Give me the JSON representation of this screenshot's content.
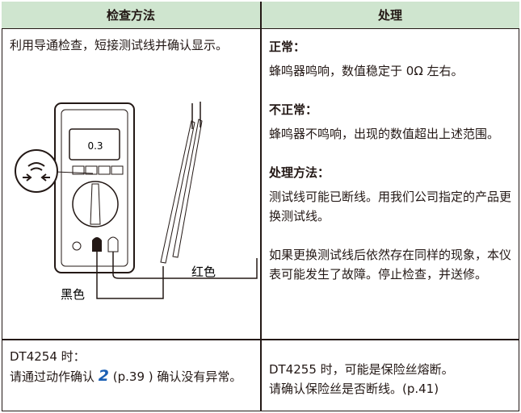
{
  "header": {
    "col1": "检查方法",
    "col2": "处理"
  },
  "rows": [
    {
      "method": {
        "text": "利用导通检查，短接测试线并确认显示。",
        "figure": {
          "display": "0.3",
          "black_label": "黑色",
          "red_label": "红色"
        }
      },
      "action": {
        "sections": [
          {
            "title": "正常：",
            "text": "蜂鸣器鸣响，数值稳定于 0Ω 左右。"
          },
          {
            "title": "不正常：",
            "text": "蜂鸣器不鸣响，出现的数值超出上述范围。"
          },
          {
            "title": "处理方法：",
            "text": "测试线可能已断线。用我们公司指定的产品更换测试线。"
          },
          {
            "text": "如果更换测试线后依然存在同样的现象，本仪表可能发生了故障。停止检查，并送修。"
          }
        ]
      }
    },
    {
      "method": {
        "model": "DT4254 时：",
        "prefix": "请通过动作确认 ",
        "step": "2",
        "suffix": " (p.39 ) 确认没有异常。"
      },
      "action": {
        "line1": "DT4255 时，可能是保险丝熔断。",
        "line2": "请确认保险丝是否断线。(p.41)"
      }
    }
  ]
}
